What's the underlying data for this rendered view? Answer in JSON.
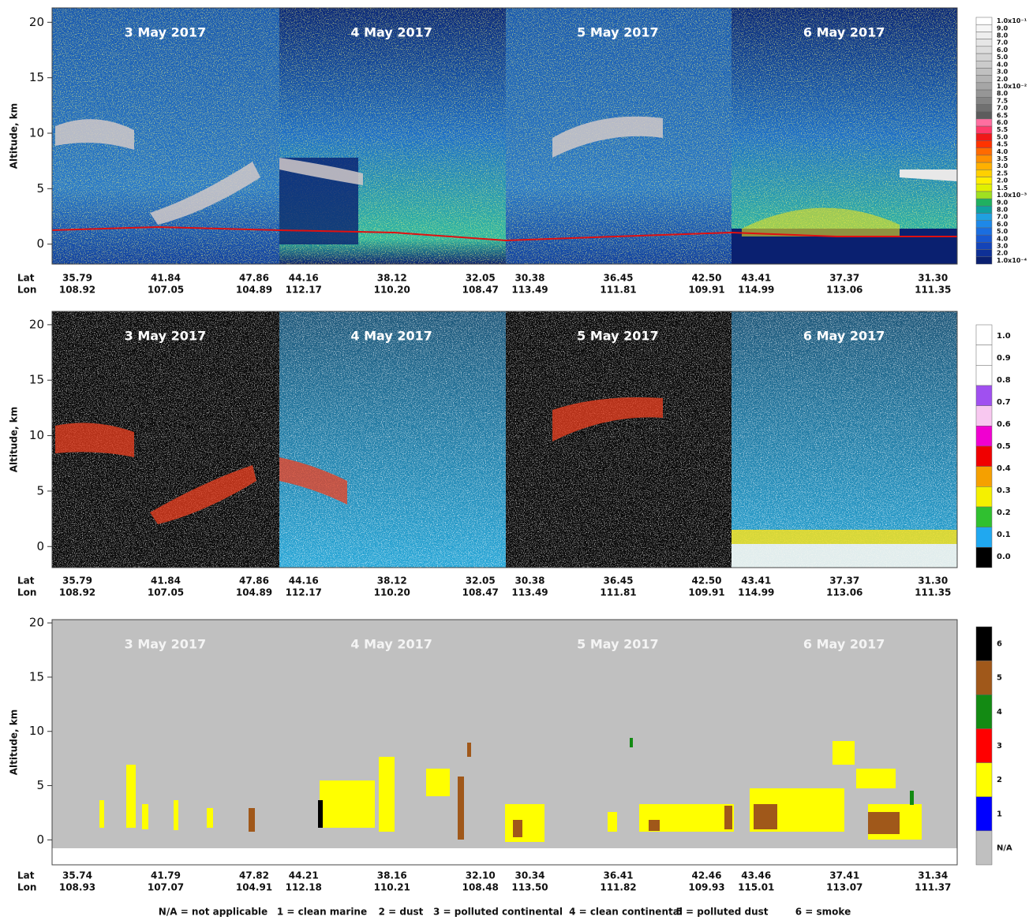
{
  "chart_data": [
    {
      "type": "heatmap",
      "y_label": "Altitude, km",
      "ylim": [
        -1.8,
        21.3
      ],
      "yticks": [
        0,
        5,
        10,
        15,
        20
      ],
      "days": [
        "3 May 2017",
        "4 May 2017",
        "5 May 2017",
        "6 May 2017"
      ],
      "lat_label": "Lat",
      "lon_label": "Lon",
      "lat": [
        "35.79",
        "41.84",
        "47.86",
        "44.16",
        "38.12",
        "32.05",
        "30.38",
        "36.45",
        "42.50",
        "43.41",
        "37.37",
        "31.30"
      ],
      "lon": [
        "108.92",
        "107.05",
        "104.89",
        "112.17",
        "110.20",
        "108.47",
        "113.49",
        "111.81",
        "109.91",
        "114.99",
        "113.06",
        "111.35"
      ],
      "colorbar": {
        "labels": [
          "1.0x10⁻¹",
          "9.0",
          "8.0",
          "7.0",
          "6.0",
          "5.0",
          "4.0",
          "3.0",
          "2.0",
          "1.0x10⁻²",
          "8.0",
          "7.5",
          "7.0",
          "6.5",
          "6.0",
          "5.5",
          "5.0",
          "4.5",
          "4.0",
          "3.5",
          "3.0",
          "2.5",
          "2.0",
          "1.5",
          "1.0x10⁻³",
          "9.0",
          "8.0",
          "7.0",
          "6.0",
          "5.0",
          "4.0",
          "3.0",
          "2.0",
          "1.0x10⁻⁴"
        ],
        "colors": [
          "#ffffff",
          "#f6f6f6",
          "#eeeeee",
          "#e6e6e6",
          "#dddddd",
          "#d4d4d4",
          "#cbcbcb",
          "#c0c0c0",
          "#b4b4b4",
          "#a6a6a6",
          "#969696",
          "#848484",
          "#707070",
          "#5c5c5c",
          "#ff6ea0",
          "#ff3a6a",
          "#f01818",
          "#ff3300",
          "#ff6a00",
          "#ff9000",
          "#ffb000",
          "#ffd000",
          "#ffee00",
          "#e0f000",
          "#a0e020",
          "#20b060",
          "#10a0a0",
          "#20a0e0",
          "#1e88e8",
          "#1a6ee0",
          "#1858d0",
          "#1444b8",
          "#0e3096",
          "#0a2070"
        ]
      }
    },
    {
      "type": "heatmap",
      "y_label": "Altitude, km",
      "ylim": [
        -1.9,
        21.2
      ],
      "yticks": [
        0,
        5,
        10,
        15,
        20
      ],
      "days": [
        "3 May 2017",
        "4 May 2017",
        "5 May 2017",
        "6 May 2017"
      ],
      "lat_label": "Lat",
      "lon_label": "Lon",
      "lat": [
        "35.79",
        "41.84",
        "47.86",
        "44.16",
        "38.12",
        "32.05",
        "30.38",
        "36.45",
        "42.50",
        "43.41",
        "37.37",
        "31.30"
      ],
      "lon": [
        "108.92",
        "107.05",
        "104.89",
        "112.17",
        "110.20",
        "108.47",
        "113.49",
        "111.81",
        "109.91",
        "114.99",
        "113.06",
        "111.35"
      ],
      "colorbar": {
        "labels": [
          "1.0",
          "0.9",
          "0.8",
          "0.7",
          "0.6",
          "0.5",
          "0.4",
          "0.3",
          "0.2",
          "0.1",
          "0.0"
        ],
        "colors": [
          "#ffffff",
          "#ffffff",
          "#ffffff",
          "#a050f0",
          "#f8c8f0",
          "#f000d0",
          "#f00000",
          "#f5a000",
          "#f5f000",
          "#30c030",
          "#20a8f0",
          "#000000"
        ]
      }
    },
    {
      "type": "heatmap",
      "y_label": "Altitude, km",
      "ylim": [
        -2.3,
        20.3
      ],
      "yticks": [
        0,
        5,
        10,
        15,
        20
      ],
      "days": [
        "3 May 2017",
        "4 May 2017",
        "5 May 2017",
        "6 May 2017"
      ],
      "lat_label": "Lat",
      "lon_label": "Lon",
      "lat": [
        "35.74",
        "41.79",
        "47.82",
        "44.21",
        "38.16",
        "32.10",
        "30.34",
        "36.41",
        "42.46",
        "43.46",
        "37.41",
        "31.34"
      ],
      "lon": [
        "108.93",
        "107.07",
        "104.91",
        "112.18",
        "110.21",
        "108.48",
        "113.50",
        "111.82",
        "109.93",
        "115.01",
        "113.07",
        "111.37"
      ],
      "colorbar": {
        "labels": [
          "6",
          "5",
          "4",
          "3",
          "2",
          "1",
          "N/A"
        ],
        "colors": [
          "#000000",
          "#a0581a",
          "#138a13",
          "#ff0000",
          "#ffff00",
          "#0000ff",
          "#c0c0c0"
        ]
      },
      "legend": [
        "N/A = not applicable",
        "1 = clean marine",
        "2 = dust",
        "3 = polluted continental",
        "4 = clean continental",
        "5 = polluted dust",
        "6 = smoke"
      ]
    }
  ]
}
